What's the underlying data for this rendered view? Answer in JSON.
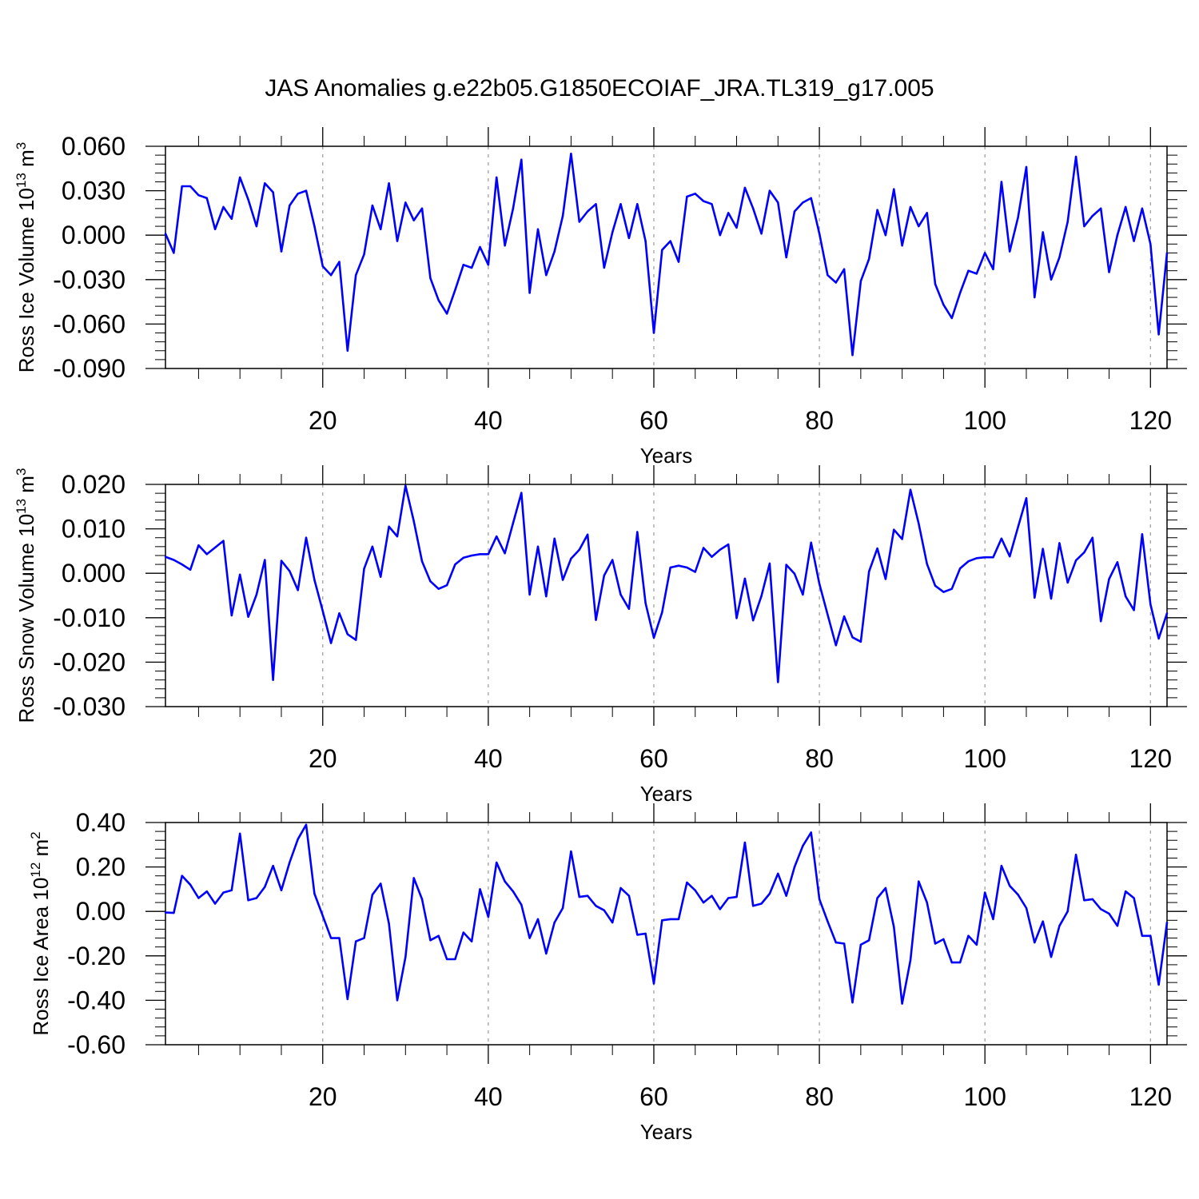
{
  "title": "JAS Anomalies g.e22b05.G1850ECOIAF_JRA.TL319_g17.005",
  "colors": {
    "line": "#0000ff",
    "axis": "#000000",
    "grid": "#999999",
    "background": "#ffffff"
  },
  "chart_data": [
    {
      "type": "line",
      "xlabel": "Years",
      "ylabel": {
        "main": "Ross Ice Volume 10",
        "exponent": "13",
        "unit": " m",
        "unit_exponent": "3"
      },
      "xlim": [
        1,
        122
      ],
      "ylim": [
        -0.09,
        0.06
      ],
      "xticks": [
        20,
        40,
        60,
        80,
        100,
        120
      ],
      "xtick_labels": [
        "20",
        "40",
        "60",
        "80",
        "100",
        "120"
      ],
      "yticks": [
        0.06,
        0.03,
        0.0,
        -0.03,
        -0.06,
        -0.09
      ],
      "ytick_labels": [
        "0.060",
        "0.030",
        "0.000",
        "-0.030",
        "-0.060",
        "-0.090"
      ],
      "grid_x": [
        20,
        40,
        60,
        80,
        100,
        120
      ],
      "series": [
        {
          "name": "Ross Ice Volume",
          "x_start": 1,
          "values": [
            0.001,
            -0.012,
            0.033,
            0.033,
            0.027,
            0.025,
            0.004,
            0.019,
            0.011,
            0.039,
            0.024,
            0.006,
            0.035,
            0.029,
            -0.011,
            0.02,
            0.028,
            0.03,
            0.006,
            -0.021,
            -0.027,
            -0.018,
            -0.078,
            -0.027,
            -0.013,
            0.02,
            0.004,
            0.035,
            -0.004,
            0.022,
            0.01,
            0.018,
            -0.029,
            -0.044,
            -0.053,
            -0.037,
            -0.02,
            -0.022,
            -0.008,
            -0.02,
            0.039,
            -0.007,
            0.018,
            0.051,
            -0.039,
            0.004,
            -0.027,
            -0.011,
            0.013,
            0.055,
            0.009,
            0.016,
            0.021,
            -0.022,
            0.002,
            0.021,
            -0.002,
            0.021,
            -0.004,
            -0.066,
            -0.01,
            -0.004,
            -0.018,
            0.026,
            0.028,
            0.023,
            0.021,
            0.0,
            0.015,
            0.005,
            0.032,
            0.018,
            0.001,
            0.03,
            0.022,
            -0.015,
            0.016,
            0.022,
            0.025,
            0.001,
            -0.027,
            -0.032,
            -0.023,
            -0.081,
            -0.031,
            -0.016,
            0.017,
            0.0,
            0.031,
            -0.007,
            0.019,
            0.006,
            0.015,
            -0.033,
            -0.047,
            -0.056,
            -0.039,
            -0.024,
            -0.026,
            -0.012,
            -0.023,
            0.036,
            -0.011,
            0.012,
            0.046,
            -0.042,
            0.002,
            -0.03,
            -0.015,
            0.009,
            0.053,
            0.006,
            0.013,
            0.018,
            -0.025,
            0.0,
            0.019,
            -0.004,
            0.018,
            -0.006,
            -0.067,
            -0.012
          ]
        }
      ]
    },
    {
      "type": "line",
      "xlabel": "Years",
      "ylabel": {
        "main": "Ross Snow Volume 10",
        "exponent": "13",
        "unit": " m",
        "unit_exponent": "3"
      },
      "xlim": [
        1,
        122
      ],
      "ylim": [
        -0.03,
        0.02
      ],
      "xticks": [
        20,
        40,
        60,
        80,
        100,
        120
      ],
      "xtick_labels": [
        "20",
        "40",
        "60",
        "80",
        "100",
        "120"
      ],
      "yticks": [
        0.02,
        0.01,
        0.0,
        -0.01,
        -0.02,
        -0.03
      ],
      "ytick_labels": [
        "0.020",
        "0.010",
        "0.000",
        "-0.010",
        "-0.020",
        "-0.030"
      ],
      "grid_x": [
        20,
        40,
        60,
        80,
        100,
        120
      ],
      "series": [
        {
          "name": "Ross Snow Volume",
          "x_start": 1,
          "values": [
            0.0037,
            0.003,
            0.002,
            0.0008,
            0.0063,
            0.0043,
            0.0058,
            0.0073,
            -0.0095,
            -0.0003,
            -0.0098,
            -0.0048,
            0.003,
            -0.024,
            0.0028,
            0.0005,
            -0.0038,
            0.008,
            -0.0015,
            -0.0085,
            -0.0157,
            -0.009,
            -0.0137,
            -0.015,
            0.001,
            0.006,
            -0.0008,
            0.0105,
            0.0083,
            0.0197,
            0.0117,
            0.0027,
            -0.0018,
            -0.0035,
            -0.0027,
            0.002,
            0.0035,
            0.004,
            0.0043,
            0.0043,
            0.0083,
            0.0045,
            0.0113,
            0.0181,
            -0.0048,
            0.006,
            -0.0052,
            0.0078,
            -0.0015,
            0.0033,
            0.0053,
            0.0087,
            -0.0105,
            -0.0005,
            0.003,
            -0.0048,
            -0.008,
            0.0093,
            -0.0067,
            -0.0145,
            -0.0088,
            0.0013,
            0.0017,
            0.0013,
            0.0003,
            0.0057,
            0.0037,
            0.0053,
            0.0065,
            -0.0101,
            -0.0012,
            -0.0106,
            -0.0051,
            0.0022,
            -0.0245,
            0.0019,
            -0.0001,
            -0.0048,
            0.0069,
            -0.0024,
            -0.0093,
            -0.0162,
            -0.0097,
            -0.0144,
            -0.0154,
            0.0004,
            0.0056,
            -0.0013,
            0.0098,
            0.0077,
            0.0188,
            0.0112,
            0.0021,
            -0.0028,
            -0.0042,
            -0.0035,
            0.0011,
            0.0027,
            0.0034,
            0.0036,
            0.0036,
            0.0078,
            0.0038,
            0.0104,
            0.0169,
            -0.0055,
            0.0055,
            -0.0057,
            0.0068,
            -0.0021,
            0.0029,
            0.0047,
            0.008,
            -0.0108,
            -0.0013,
            0.0025,
            -0.0052,
            -0.0083,
            0.0088,
            -0.007,
            -0.0147,
            -0.009
          ]
        }
      ]
    },
    {
      "type": "line",
      "xlabel": "Years",
      "ylabel": {
        "main": "Ross Ice Area 10",
        "exponent": "12",
        "unit": " m",
        "unit_exponent": "2"
      },
      "xlim": [
        1,
        122
      ],
      "ylim": [
        -0.6,
        0.4
      ],
      "xticks": [
        20,
        40,
        60,
        80,
        100,
        120
      ],
      "xtick_labels": [
        "20",
        "40",
        "60",
        "80",
        "100",
        "120"
      ],
      "yticks": [
        0.4,
        0.2,
        0.0,
        -0.2,
        -0.4,
        -0.6
      ],
      "ytick_labels": [
        "0.40",
        "0.20",
        "0.00",
        "-0.20",
        "-0.40",
        "-0.60"
      ],
      "grid_x": [
        20,
        40,
        60,
        80,
        100,
        120
      ],
      "series": [
        {
          "name": "Ross Ice Area",
          "x_start": 1,
          "values": [
            -0.005,
            -0.007,
            0.16,
            0.12,
            0.06,
            0.09,
            0.035,
            0.085,
            0.095,
            0.35,
            0.05,
            0.06,
            0.11,
            0.205,
            0.095,
            0.22,
            0.325,
            0.39,
            0.08,
            -0.02,
            -0.12,
            -0.12,
            -0.395,
            -0.135,
            -0.12,
            0.075,
            0.125,
            -0.055,
            -0.4,
            -0.205,
            0.15,
            0.055,
            -0.13,
            -0.11,
            -0.215,
            -0.215,
            -0.095,
            -0.135,
            0.1,
            -0.025,
            0.22,
            0.135,
            0.09,
            0.03,
            -0.12,
            -0.035,
            -0.19,
            -0.05,
            0.015,
            0.27,
            0.065,
            0.07,
            0.025,
            0.005,
            -0.05,
            0.105,
            0.07,
            -0.105,
            -0.1,
            -0.325,
            -0.04,
            -0.035,
            -0.035,
            0.13,
            0.095,
            0.04,
            0.07,
            0.01,
            0.06,
            0.065,
            0.31,
            0.025,
            0.035,
            0.08,
            0.17,
            0.07,
            0.2,
            0.295,
            0.355,
            0.055,
            -0.045,
            -0.14,
            -0.145,
            -0.41,
            -0.15,
            -0.13,
            0.06,
            0.105,
            -0.07,
            -0.415,
            -0.22,
            0.135,
            0.04,
            -0.145,
            -0.125,
            -0.23,
            -0.23,
            -0.11,
            -0.15,
            0.085,
            -0.035,
            0.205,
            0.115,
            0.075,
            0.015,
            -0.14,
            -0.045,
            -0.205,
            -0.065,
            0.0,
            0.255,
            0.05,
            0.055,
            0.01,
            -0.01,
            -0.065,
            0.09,
            0.06,
            -0.11,
            -0.11,
            -0.33,
            -0.05
          ]
        }
      ]
    }
  ]
}
